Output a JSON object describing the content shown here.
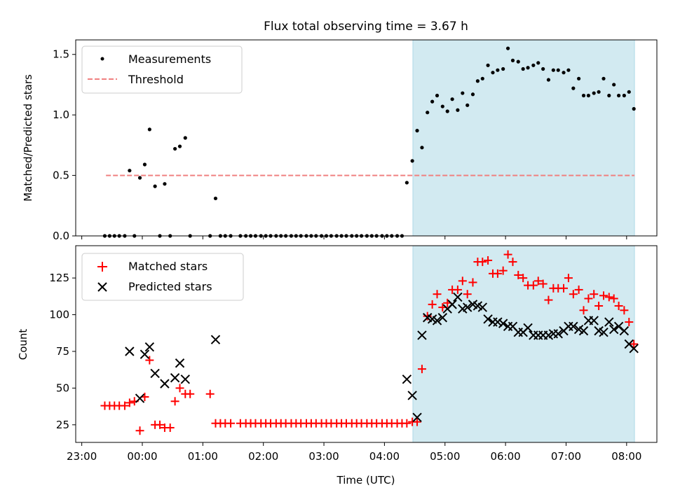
{
  "figure_title": "Flux total observing time = 3.67 h",
  "colors": {
    "shade": "#add8e6",
    "measurement": "#000000",
    "threshold": "#f08080",
    "matched": "#ff0000",
    "predicted": "#000000",
    "axis": "#000000"
  },
  "chart_data": [
    {
      "type": "scatter",
      "title": "Flux total observing time = 3.67 h",
      "xlabel": "",
      "ylabel": "Matched/Predicted stars",
      "x_unit": "hours since 23:00 UTC",
      "xlim": [
        -0.1,
        9.5
      ],
      "ylim": [
        0,
        1.62
      ],
      "yticks": [
        0.0,
        0.5,
        1.0,
        1.5
      ],
      "ytick_labels": [
        "0.0",
        "0.5",
        "1.0",
        "1.5"
      ],
      "xtick_labels": [],
      "shaded_region": [
        5.47,
        9.13
      ],
      "legend_position": "top-left",
      "legend": [
        {
          "label": "Measurements",
          "kind": "dot"
        },
        {
          "label": "Threshold",
          "kind": "dash"
        }
      ],
      "threshold": {
        "name": "Threshold",
        "value": 0.5,
        "x_range": [
          0.4,
          9.13
        ]
      },
      "series": [
        {
          "name": "Measurements",
          "points": [
            [
              0.38,
              0
            ],
            [
              0.46,
              0
            ],
            [
              0.54,
              0
            ],
            [
              0.62,
              0
            ],
            [
              0.71,
              0
            ],
            [
              0.79,
              0.54
            ],
            [
              0.87,
              0
            ],
            [
              0.96,
              0.48
            ],
            [
              1.04,
              0.59
            ],
            [
              1.12,
              0.88
            ],
            [
              1.21,
              0.41
            ],
            [
              1.29,
              0
            ],
            [
              1.37,
              0.43
            ],
            [
              1.46,
              0
            ],
            [
              1.54,
              0.72
            ],
            [
              1.62,
              0.74
            ],
            [
              1.71,
              0.81
            ],
            [
              1.79,
              0
            ],
            [
              2.12,
              0
            ],
            [
              2.21,
              0.31
            ],
            [
              2.29,
              0
            ],
            [
              2.37,
              0
            ],
            [
              2.46,
              0
            ],
            [
              2.62,
              0
            ],
            [
              2.71,
              0
            ],
            [
              2.79,
              0
            ],
            [
              2.87,
              0
            ],
            [
              2.96,
              0
            ],
            [
              3.04,
              0
            ],
            [
              3.12,
              0
            ],
            [
              3.21,
              0
            ],
            [
              3.29,
              0
            ],
            [
              3.37,
              0
            ],
            [
              3.46,
              0
            ],
            [
              3.54,
              0
            ],
            [
              3.62,
              0
            ],
            [
              3.71,
              0
            ],
            [
              3.79,
              0
            ],
            [
              3.87,
              0
            ],
            [
              3.96,
              0
            ],
            [
              4.04,
              0
            ],
            [
              4.12,
              0
            ],
            [
              4.21,
              0
            ],
            [
              4.29,
              0
            ],
            [
              4.37,
              0
            ],
            [
              4.46,
              0
            ],
            [
              4.54,
              0
            ],
            [
              4.62,
              0
            ],
            [
              4.71,
              0
            ],
            [
              4.79,
              0
            ],
            [
              4.87,
              0
            ],
            [
              4.96,
              0
            ],
            [
              5.04,
              0
            ],
            [
              5.12,
              0
            ],
            [
              5.21,
              0
            ],
            [
              5.29,
              0
            ],
            [
              5.37,
              0.44
            ],
            [
              5.46,
              0.62
            ],
            [
              5.54,
              0.87
            ],
            [
              5.62,
              0.73
            ],
            [
              5.71,
              1.02
            ],
            [
              5.79,
              1.11
            ],
            [
              5.87,
              1.16
            ],
            [
              5.96,
              1.07
            ],
            [
              6.04,
              1.03
            ],
            [
              6.12,
              1.13
            ],
            [
              6.21,
              1.04
            ],
            [
              6.29,
              1.18
            ],
            [
              6.37,
              1.08
            ],
            [
              6.46,
              1.17
            ],
            [
              6.54,
              1.28
            ],
            [
              6.62,
              1.3
            ],
            [
              6.71,
              1.41
            ],
            [
              6.79,
              1.35
            ],
            [
              6.87,
              1.37
            ],
            [
              6.96,
              1.38
            ],
            [
              7.04,
              1.55
            ],
            [
              7.12,
              1.45
            ],
            [
              7.21,
              1.44
            ],
            [
              7.29,
              1.38
            ],
            [
              7.37,
              1.39
            ],
            [
              7.46,
              1.41
            ],
            [
              7.54,
              1.43
            ],
            [
              7.62,
              1.38
            ],
            [
              7.71,
              1.29
            ],
            [
              7.79,
              1.37
            ],
            [
              7.87,
              1.37
            ],
            [
              7.96,
              1.35
            ],
            [
              8.04,
              1.37
            ],
            [
              8.12,
              1.22
            ],
            [
              8.21,
              1.3
            ],
            [
              8.29,
              1.16
            ],
            [
              8.37,
              1.16
            ],
            [
              8.46,
              1.18
            ],
            [
              8.54,
              1.19
            ],
            [
              8.62,
              1.3
            ],
            [
              8.71,
              1.16
            ],
            [
              8.79,
              1.25
            ],
            [
              8.87,
              1.16
            ],
            [
              8.96,
              1.16
            ],
            [
              9.04,
              1.19
            ],
            [
              9.12,
              1.05
            ]
          ]
        }
      ]
    },
    {
      "type": "scatter",
      "title": "",
      "xlabel": "Time (UTC)",
      "ylabel": "Count",
      "x_unit": "hours since 23:00 UTC",
      "xlim": [
        -0.1,
        9.5
      ],
      "ylim": [
        13,
        147
      ],
      "yticks": [
        25,
        50,
        75,
        100,
        125
      ],
      "ytick_labels": [
        "25",
        "50",
        "75",
        "100",
        "125"
      ],
      "xticks": [
        0,
        1,
        2,
        3,
        4,
        5,
        6,
        7,
        8,
        9
      ],
      "xtick_labels": [
        "23:00",
        "00:00",
        "01:00",
        "02:00",
        "03:00",
        "04:00",
        "05:00",
        "06:00",
        "07:00",
        "08:00"
      ],
      "shaded_region": [
        5.47,
        9.13
      ],
      "legend_position": "top-left",
      "legend": [
        {
          "label": "Matched stars",
          "kind": "plus"
        },
        {
          "label": "Predicted stars",
          "kind": "cross"
        }
      ],
      "series": [
        {
          "name": "Matched stars",
          "marker": "plus",
          "points": [
            [
              0.38,
              38
            ],
            [
              0.46,
              38
            ],
            [
              0.54,
              38
            ],
            [
              0.62,
              38
            ],
            [
              0.71,
              38
            ],
            [
              0.79,
              40
            ],
            [
              0.87,
              41
            ],
            [
              0.96,
              21
            ],
            [
              1.04,
              44
            ],
            [
              1.12,
              69
            ],
            [
              1.21,
              25
            ],
            [
              1.29,
              25
            ],
            [
              1.37,
              23
            ],
            [
              1.46,
              23
            ],
            [
              1.54,
              41
            ],
            [
              1.62,
              50
            ],
            [
              1.71,
              46
            ],
            [
              1.79,
              46
            ],
            [
              2.12,
              46
            ],
            [
              2.21,
              26
            ],
            [
              2.29,
              26
            ],
            [
              2.37,
              26
            ],
            [
              2.46,
              26
            ],
            [
              2.62,
              26
            ],
            [
              2.71,
              26
            ],
            [
              2.79,
              26
            ],
            [
              2.87,
              26
            ],
            [
              2.96,
              26
            ],
            [
              3.04,
              26
            ],
            [
              3.12,
              26
            ],
            [
              3.21,
              26
            ],
            [
              3.29,
              26
            ],
            [
              3.37,
              26
            ],
            [
              3.46,
              26
            ],
            [
              3.54,
              26
            ],
            [
              3.62,
              26
            ],
            [
              3.71,
              26
            ],
            [
              3.79,
              26
            ],
            [
              3.87,
              26
            ],
            [
              3.96,
              26
            ],
            [
              4.04,
              26
            ],
            [
              4.12,
              26
            ],
            [
              4.21,
              26
            ],
            [
              4.29,
              26
            ],
            [
              4.37,
              26
            ],
            [
              4.46,
              26
            ],
            [
              4.54,
              26
            ],
            [
              4.62,
              26
            ],
            [
              4.71,
              26
            ],
            [
              4.79,
              26
            ],
            [
              4.87,
              26
            ],
            [
              4.96,
              26
            ],
            [
              5.04,
              26
            ],
            [
              5.12,
              26
            ],
            [
              5.21,
              26
            ],
            [
              5.29,
              26
            ],
            [
              5.37,
              26
            ],
            [
              5.46,
              27
            ],
            [
              5.54,
              27
            ],
            [
              5.62,
              63
            ],
            [
              5.71,
              99
            ],
            [
              5.79,
              107
            ],
            [
              5.87,
              114
            ],
            [
              5.96,
              105
            ],
            [
              6.04,
              108
            ],
            [
              6.12,
              117
            ],
            [
              6.21,
              117
            ],
            [
              6.29,
              123
            ],
            [
              6.37,
              114
            ],
            [
              6.46,
              122
            ],
            [
              6.54,
              136
            ],
            [
              6.62,
              136
            ],
            [
              6.71,
              137
            ],
            [
              6.79,
              128
            ],
            [
              6.87,
              128
            ],
            [
              6.96,
              130
            ],
            [
              7.04,
              141
            ],
            [
              7.12,
              136
            ],
            [
              7.21,
              127
            ],
            [
              7.29,
              125
            ],
            [
              7.37,
              120
            ],
            [
              7.46,
              120
            ],
            [
              7.54,
              123
            ],
            [
              7.62,
              121
            ],
            [
              7.71,
              110
            ],
            [
              7.79,
              118
            ],
            [
              7.87,
              118
            ],
            [
              7.96,
              118
            ],
            [
              8.04,
              125
            ],
            [
              8.12,
              114
            ],
            [
              8.21,
              117
            ],
            [
              8.29,
              103
            ],
            [
              8.37,
              111
            ],
            [
              8.46,
              114
            ],
            [
              8.54,
              106
            ],
            [
              8.62,
              113
            ],
            [
              8.71,
              112
            ],
            [
              8.79,
              111
            ],
            [
              8.87,
              106
            ],
            [
              8.96,
              103
            ],
            [
              9.04,
              95
            ],
            [
              9.12,
              80
            ]
          ]
        },
        {
          "name": "Predicted stars",
          "marker": "cross",
          "points": [
            [
              0.79,
              75
            ],
            [
              0.96,
              43
            ],
            [
              1.04,
              73
            ],
            [
              1.12,
              78
            ],
            [
              1.21,
              60
            ],
            [
              1.37,
              53
            ],
            [
              1.54,
              57
            ],
            [
              1.62,
              67
            ],
            [
              1.71,
              56
            ],
            [
              2.21,
              83
            ],
            [
              5.37,
              56
            ],
            [
              5.46,
              45
            ],
            [
              5.54,
              30
            ],
            [
              5.62,
              86
            ],
            [
              5.71,
              98
            ],
            [
              5.79,
              97
            ],
            [
              5.87,
              96
            ],
            [
              5.96,
              98
            ],
            [
              6.04,
              104
            ],
            [
              6.12,
              107
            ],
            [
              6.21,
              112
            ],
            [
              6.29,
              104
            ],
            [
              6.37,
              105
            ],
            [
              6.46,
              107
            ],
            [
              6.54,
              106
            ],
            [
              6.62,
              105
            ],
            [
              6.71,
              97
            ],
            [
              6.79,
              95
            ],
            [
              6.87,
              95
            ],
            [
              6.96,
              94
            ],
            [
              7.04,
              92
            ],
            [
              7.12,
              92
            ],
            [
              7.21,
              88
            ],
            [
              7.29,
              88
            ],
            [
              7.37,
              91
            ],
            [
              7.46,
              86
            ],
            [
              7.54,
              86
            ],
            [
              7.62,
              86
            ],
            [
              7.71,
              86
            ],
            [
              7.79,
              87
            ],
            [
              7.87,
              87
            ],
            [
              7.96,
              89
            ],
            [
              8.04,
              92
            ],
            [
              8.12,
              92
            ],
            [
              8.21,
              90
            ],
            [
              8.29,
              89
            ],
            [
              8.37,
              96
            ],
            [
              8.46,
              96
            ],
            [
              8.54,
              89
            ],
            [
              8.62,
              88
            ],
            [
              8.71,
              95
            ],
            [
              8.79,
              90
            ],
            [
              8.87,
              92
            ],
            [
              8.96,
              89
            ],
            [
              9.04,
              80
            ],
            [
              9.12,
              77
            ]
          ]
        }
      ]
    }
  ]
}
